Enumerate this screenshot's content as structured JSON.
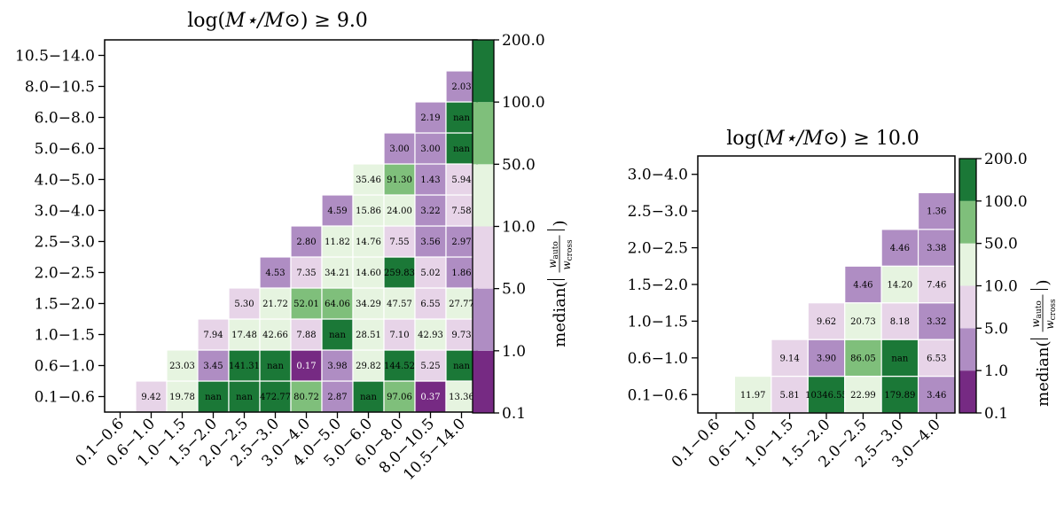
{
  "colorbar": {
    "label": "median(|w_auto / w_cross|)",
    "ticks": [
      "0.1",
      "1.0",
      "5.0",
      "10.0",
      "50.0",
      "100.0",
      "200.0"
    ],
    "bin_colors": [
      "#762a83",
      "#af8dc3",
      "#e7d4e8",
      "#e6f4e0",
      "#7fbf7b",
      "#1b7837"
    ]
  },
  "chart_data": [
    {
      "type": "heatmap",
      "title": "log(M⋆/M⊙) ≥ 9.0",
      "title_main": "log(",
      "title_mid": "M⋆/M⊙",
      "title_end": ") ≥ 9.0",
      "xlabel": "",
      "ylabel": "",
      "categories": [
        "0.1−0.6",
        "0.6−1.0",
        "1.0−1.5",
        "1.5−2.0",
        "2.0−2.5",
        "2.5−3.0",
        "3.0−4.0",
        "4.0−5.0",
        "5.0−6.0",
        "6.0−8.0",
        "8.0−10.5",
        "10.5−14.0"
      ],
      "cells": [
        [
          "",
          "9.42",
          "19.78",
          "nan",
          "nan",
          "472.77",
          "80.72",
          "2.87",
          "nan",
          "97.06",
          "0.37",
          "13.36"
        ],
        [
          "",
          "",
          "23.03",
          "3.45",
          "141.31",
          "nan",
          "0.17",
          "3.98",
          "29.82",
          "144.52",
          "5.25",
          "nan"
        ],
        [
          "",
          "",
          "",
          "7.94",
          "17.48",
          "42.66",
          "7.88",
          "nan",
          "28.51",
          "7.10",
          "42.93",
          "9.73"
        ],
        [
          "",
          "",
          "",
          "",
          "5.30",
          "21.72",
          "52.01",
          "64.06",
          "34.29",
          "47.57",
          "6.55",
          "27.77"
        ],
        [
          "",
          "",
          "",
          "",
          "",
          "4.53",
          "7.35",
          "34.21",
          "14.60",
          "259.83",
          "5.02",
          "1.86"
        ],
        [
          "",
          "",
          "",
          "",
          "",
          "",
          "2.80",
          "11.82",
          "14.76",
          "7.55",
          "3.56",
          "2.97"
        ],
        [
          "",
          "",
          "",
          "",
          "",
          "",
          "",
          "4.59",
          "15.86",
          "24.00",
          "3.22",
          "7.58"
        ],
        [
          "",
          "",
          "",
          "",
          "",
          "",
          "",
          "",
          "35.46",
          "91.30",
          "1.43",
          "5.94"
        ],
        [
          "",
          "",
          "",
          "",
          "",
          "",
          "",
          "",
          "",
          "3.00",
          "3.00",
          "nan"
        ],
        [
          "",
          "",
          "",
          "",
          "",
          "",
          "",
          "",
          "",
          "",
          "2.19",
          "nan"
        ],
        [
          "",
          "",
          "",
          "",
          "",
          "",
          "",
          "",
          "",
          "",
          "",
          "2.03"
        ],
        [
          "",
          "",
          "",
          "",
          "",
          "",
          "",
          "",
          "",
          "",
          "",
          ""
        ]
      ]
    },
    {
      "type": "heatmap",
      "title": "log(M⋆/M⊙) ≥ 10.0",
      "title_main": "log(",
      "title_mid": "M⋆/M⊙",
      "title_end": ") ≥ 10.0",
      "xlabel": "",
      "ylabel": "",
      "categories": [
        "0.1−0.6",
        "0.6−1.0",
        "1.0−1.5",
        "1.5−2.0",
        "2.0−2.5",
        "2.5−3.0",
        "3.0−4.0"
      ],
      "cells": [
        [
          "",
          "11.97",
          "5.81",
          "10346.55",
          "22.99",
          "179.89",
          "3.46"
        ],
        [
          "",
          "",
          "9.14",
          "3.90",
          "86.05",
          "nan",
          "6.53"
        ],
        [
          "",
          "",
          "",
          "9.62",
          "20.73",
          "8.18",
          "3.32"
        ],
        [
          "",
          "",
          "",
          "",
          "4.46",
          "14.20",
          "7.46"
        ],
        [
          "",
          "",
          "",
          "",
          "",
          "4.46",
          "3.38"
        ],
        [
          "",
          "",
          "",
          "",
          "",
          "",
          "1.36"
        ],
        [
          "",
          "",
          "",
          "",
          "",
          "",
          ""
        ]
      ]
    }
  ]
}
